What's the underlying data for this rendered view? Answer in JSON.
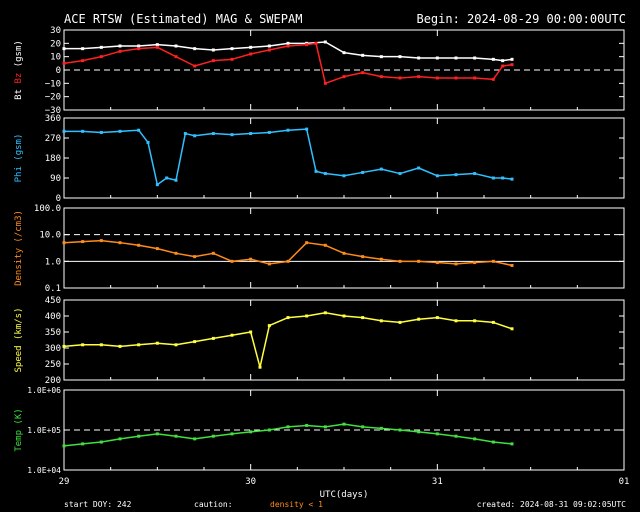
{
  "header": {
    "title": "ACE RTSW (Estimated) MAG & SWEPAM",
    "begin": "Begin: 2024-08-29 00:00:00UTC"
  },
  "footer": {
    "start_doy": "start DOY: 242",
    "caution": "caution:",
    "density_note": "density < 1",
    "created": "created: 2024-08-31 09:02:05UTC",
    "xlabel": "UTC(days)"
  },
  "x_ticks": [
    "29",
    "30",
    "31",
    "01"
  ],
  "colors": {
    "bt": "#ffffff",
    "bz": "#ff2020",
    "phi": "#30c0ff",
    "density": "#ff8c1a",
    "speed": "#ffff40",
    "temp": "#40e040"
  },
  "chart_data": [
    {
      "type": "scatter",
      "ylabel": "Bt Bz (gsm)",
      "ylabel_parts": {
        "bt": "Bt",
        "bz": "Bz",
        "unit": "(gsm)"
      },
      "ylim": [
        -30,
        30
      ],
      "yticks": [
        "30",
        "20",
        "10",
        "0",
        "−10",
        "−20",
        "−30"
      ],
      "ytick_values": [
        30,
        20,
        10,
        0,
        -10,
        -20,
        -30
      ],
      "dashed": [
        0
      ],
      "series": [
        {
          "name": "Bt",
          "color": "#ffffff",
          "x": [
            0.0,
            0.1,
            0.2,
            0.3,
            0.4,
            0.5,
            0.6,
            0.7,
            0.8,
            0.9,
            1.0,
            1.1,
            1.2,
            1.3,
            1.4,
            1.5,
            1.6,
            1.7,
            1.8,
            1.9,
            2.0,
            2.1,
            2.2,
            2.3,
            2.35,
            2.4
          ],
          "y": [
            16,
            16,
            17,
            18,
            18,
            19,
            18,
            16,
            15,
            16,
            17,
            18,
            20,
            20,
            21,
            13,
            11,
            10,
            10,
            9,
            9,
            9,
            9,
            8,
            7,
            8
          ]
        },
        {
          "name": "Bz",
          "color": "#ff2020",
          "x": [
            0.0,
            0.1,
            0.2,
            0.3,
            0.4,
            0.5,
            0.6,
            0.7,
            0.8,
            0.9,
            1.0,
            1.1,
            1.2,
            1.3,
            1.35,
            1.4,
            1.5,
            1.6,
            1.7,
            1.8,
            1.9,
            2.0,
            2.1,
            2.2,
            2.3,
            2.35,
            2.4
          ],
          "y": [
            5,
            7,
            10,
            14,
            16,
            17,
            10,
            3,
            7,
            8,
            12,
            15,
            18,
            19,
            20,
            -10,
            -5,
            -2,
            -5,
            -6,
            -5,
            -6,
            -6,
            -6,
            -7,
            3,
            4
          ]
        }
      ]
    },
    {
      "type": "scatter",
      "ylabel": "Phi (gsm)",
      "ylim": [
        0,
        360
      ],
      "yticks": [
        "360",
        "270",
        "180",
        "90",
        "0"
      ],
      "ytick_values": [
        360,
        270,
        180,
        90,
        0
      ],
      "dashed": [],
      "series": [
        {
          "name": "Phi",
          "color": "#30c0ff",
          "x": [
            0.0,
            0.1,
            0.2,
            0.3,
            0.4,
            0.45,
            0.5,
            0.55,
            0.6,
            0.65,
            0.7,
            0.8,
            0.9,
            1.0,
            1.1,
            1.2,
            1.3,
            1.35,
            1.4,
            1.5,
            1.6,
            1.7,
            1.8,
            1.9,
            2.0,
            2.1,
            2.2,
            2.3,
            2.35,
            2.4
          ],
          "y": [
            300,
            300,
            295,
            300,
            305,
            250,
            60,
            90,
            80,
            290,
            280,
            290,
            285,
            290,
            295,
            305,
            310,
            120,
            110,
            100,
            115,
            130,
            110,
            135,
            100,
            105,
            110,
            90,
            90,
            85
          ]
        }
      ]
    },
    {
      "type": "scatter",
      "ylabel": "Density (/cm3)",
      "scale": "log",
      "ylim": [
        0.1,
        100
      ],
      "yticks": [
        "100.0",
        "10.0",
        "1.0",
        "0.1"
      ],
      "ytick_values": [
        100,
        10,
        1,
        0.1
      ],
      "dashed": [
        10
      ],
      "solid": [
        1
      ],
      "series": [
        {
          "name": "Density",
          "color": "#ff8c1a",
          "x": [
            0.0,
            0.1,
            0.2,
            0.3,
            0.4,
            0.5,
            0.6,
            0.7,
            0.8,
            0.9,
            1.0,
            1.1,
            1.2,
            1.3,
            1.4,
            1.5,
            1.6,
            1.7,
            1.8,
            1.9,
            2.0,
            2.1,
            2.2,
            2.3,
            2.4
          ],
          "y": [
            5,
            5.5,
            6,
            5,
            4,
            3,
            2,
            1.5,
            2,
            1,
            1.2,
            0.8,
            1,
            5,
            4,
            2,
            1.5,
            1.2,
            1,
            1,
            0.9,
            0.8,
            0.9,
            1,
            0.7
          ]
        }
      ]
    },
    {
      "type": "scatter",
      "ylabel": "Speed (km/s)",
      "ylim": [
        200,
        450
      ],
      "yticks": [
        "450",
        "400",
        "350",
        "300",
        "250",
        "200"
      ],
      "ytick_values": [
        450,
        400,
        350,
        300,
        250,
        200
      ],
      "dashed": [],
      "series": [
        {
          "name": "Speed",
          "color": "#ffff40",
          "x": [
            0.0,
            0.1,
            0.2,
            0.3,
            0.4,
            0.5,
            0.6,
            0.7,
            0.8,
            0.9,
            1.0,
            1.05,
            1.1,
            1.2,
            1.3,
            1.4,
            1.5,
            1.6,
            1.7,
            1.8,
            1.9,
            2.0,
            2.1,
            2.2,
            2.3,
            2.4
          ],
          "y": [
            305,
            310,
            310,
            305,
            310,
            315,
            310,
            320,
            330,
            340,
            350,
            240,
            370,
            395,
            400,
            410,
            400,
            395,
            385,
            380,
            390,
            395,
            385,
            385,
            380,
            360
          ]
        }
      ]
    },
    {
      "type": "scatter",
      "ylabel": "Temp (K)",
      "scale": "log",
      "ylim": [
        10000,
        1000000
      ],
      "yticks": [
        "1.0E+06",
        "1.0E+05",
        "1.0E+04"
      ],
      "ytick_values": [
        1000000,
        100000,
        10000
      ],
      "dashed": [
        100000
      ],
      "series": [
        {
          "name": "Temp",
          "color": "#40e040",
          "x": [
            0.0,
            0.1,
            0.2,
            0.3,
            0.4,
            0.5,
            0.6,
            0.7,
            0.8,
            0.9,
            1.0,
            1.1,
            1.2,
            1.3,
            1.4,
            1.5,
            1.6,
            1.7,
            1.8,
            1.9,
            2.0,
            2.1,
            2.2,
            2.3,
            2.4
          ],
          "y": [
            40000,
            45000,
            50000,
            60000,
            70000,
            80000,
            70000,
            60000,
            70000,
            80000,
            90000,
            100000,
            120000,
            130000,
            120000,
            140000,
            120000,
            110000,
            100000,
            90000,
            80000,
            70000,
            60000,
            50000,
            45000
          ]
        }
      ]
    }
  ]
}
